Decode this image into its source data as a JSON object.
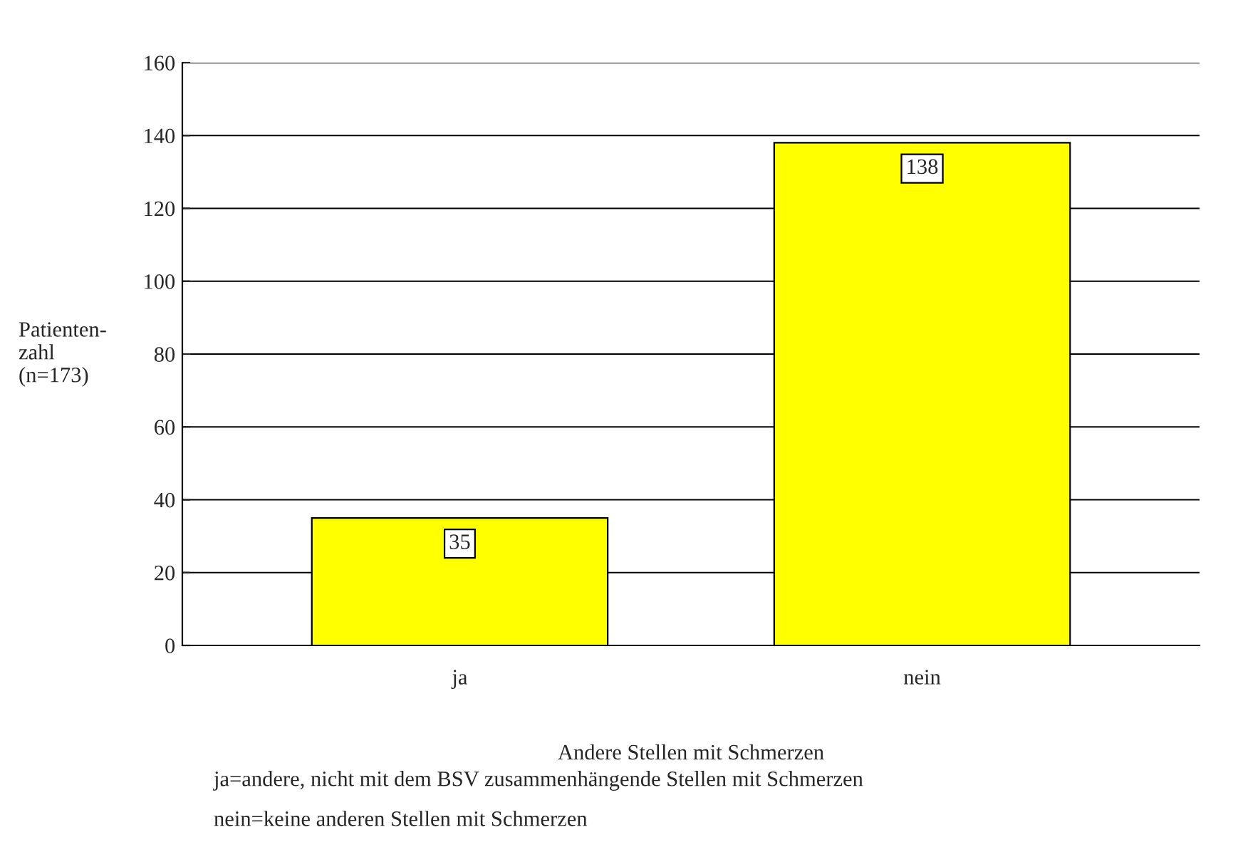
{
  "chart_data": {
    "type": "bar",
    "categories": [
      "ja",
      "nein"
    ],
    "values": [
      35,
      138
    ],
    "color": "#ffff00",
    "xlabel": "Andere Stellen mit Schmerzen",
    "ylabel": "Patienten-\nzahl\n(n=173)",
    "ylim": [
      0,
      160
    ],
    "yticks": [
      0,
      20,
      40,
      60,
      80,
      100,
      120,
      140,
      160
    ],
    "grid": "y",
    "data_labels": true,
    "legend": false,
    "annotations": [
      "ja=andere, nicht mit dem BSV zusammenhängende Stellen mit Schmerzen",
      "nein=keine anderen Stellen mit Schmerzen"
    ]
  }
}
